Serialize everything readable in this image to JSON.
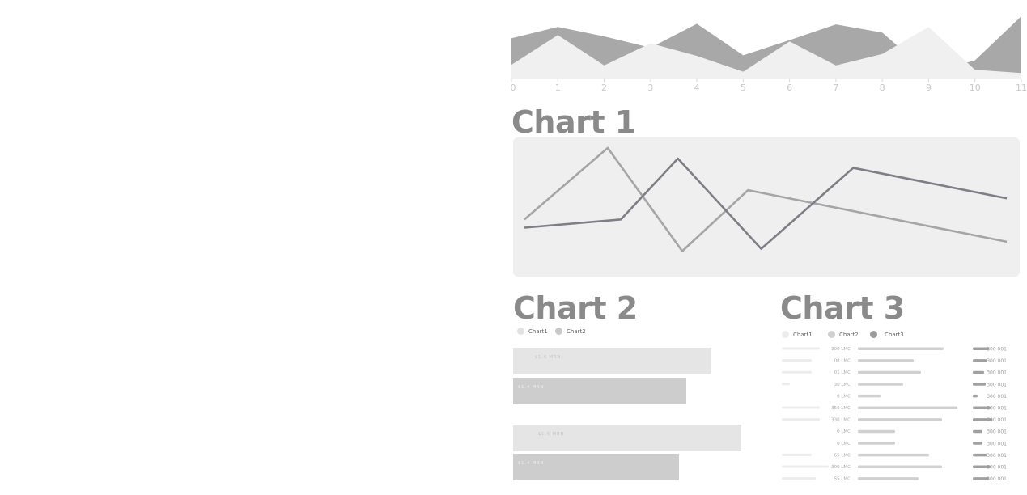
{
  "colors": {
    "dark_area": "#a8a8a9",
    "light_area": "#f0f0f0",
    "line_a": "#a5a5a8",
    "line_b": "#7e7e86",
    "card_bg": "#efefef",
    "bar_light": "#e5e5e5",
    "bar_mid": "#cdcdcd",
    "title": "#8a8a8a"
  },
  "chart_data": [
    {
      "type": "area",
      "x": [
        0,
        1,
        2,
        3,
        4,
        5,
        6,
        7,
        8,
        9,
        10,
        11
      ],
      "xlim": [
        0,
        11
      ],
      "ylim": [
        0,
        100
      ],
      "series": [
        {
          "values": [
            65,
            83,
            68,
            50,
            88,
            38,
            62,
            87,
            74,
            10,
            30,
            100
          ]
        },
        {
          "values": [
            23,
            70,
            22,
            57,
            37,
            12,
            60,
            22,
            40,
            83,
            15,
            10
          ]
        }
      ]
    },
    {
      "type": "line",
      "title": "Chart 1",
      "x": [
        0,
        1,
        2,
        3,
        4,
        5,
        6,
        7,
        8,
        9,
        10,
        11
      ],
      "xlim": [
        0,
        11
      ],
      "ylim": [
        0,
        100
      ],
      "series": [
        {
          "x": [
            0,
            1.9,
            3.6,
            5.1,
            11
          ],
          "values": [
            37,
            98,
            10,
            62,
            18
          ]
        },
        {
          "x": [
            0,
            2.2,
            3.5,
            5.4,
            7.5,
            11
          ],
          "values": [
            30,
            37,
            89,
            12,
            81,
            55
          ]
        }
      ]
    },
    {
      "type": "bar",
      "title": "Chart 2",
      "legend": [
        "Chart1",
        "Chart2"
      ],
      "orientation": "horizontal",
      "groups": [
        {
          "bars": [
            {
              "series": "Chart1",
              "label": "$1.6 MRN",
              "value": 253
            },
            {
              "series": "Chart2",
              "label": "$1.4 MRN",
              "value": 221
            }
          ]
        },
        {
          "bars": [
            {
              "series": "Chart1",
              "label": "$1.5 MRN",
              "value": 291
            },
            {
              "series": "Chart2",
              "label": "$1.4 MRN",
              "value": 211
            }
          ]
        }
      ],
      "xlim": [
        0,
        300
      ]
    },
    {
      "type": "bar",
      "title": "Chart 3",
      "legend": [
        "Chart1",
        "Chart2",
        "Chart3"
      ],
      "rows": [
        {
          "left": 47,
          "mid": "300 LMC",
          "bar": 106,
          "right_len": 20,
          "right": "300 001"
        },
        {
          "left": 37,
          "mid": "08 LMC",
          "bar": 69,
          "right_len": 18,
          "right": "300 001"
        },
        {
          "left": 37,
          "mid": "01 LMC",
          "bar": 78,
          "right_len": 14,
          "right": "300 001"
        },
        {
          "left": 10,
          "mid": "30 LMC",
          "bar": 56,
          "right_len": 16,
          "right": "300 001"
        },
        {
          "left": 0,
          "mid": "0 LMC",
          "bar": 28,
          "right_len": 6,
          "right": "300 001"
        },
        {
          "left": 47,
          "mid": "350 LMC",
          "bar": 123,
          "right_len": 22,
          "right": "300 001"
        },
        {
          "left": 47,
          "mid": "330 LMC",
          "bar": 104,
          "right_len": 24,
          "right": "300 001"
        },
        {
          "left": 0,
          "mid": "0 LMC",
          "bar": 46,
          "right_len": 12,
          "right": "300 001"
        },
        {
          "left": 0,
          "mid": "0 LMC",
          "bar": 46,
          "right_len": 12,
          "right": "300 001"
        },
        {
          "left": 37,
          "mid": "65 LMC",
          "bar": 88,
          "right_len": 18,
          "right": "300 001"
        },
        {
          "left": 58,
          "mid": "300 LMC",
          "bar": 104,
          "right_len": 22,
          "right": "300 001"
        },
        {
          "left": 42,
          "mid": "55 LMC",
          "bar": 75,
          "right_len": 20,
          "right": "300 001"
        }
      ]
    }
  ]
}
